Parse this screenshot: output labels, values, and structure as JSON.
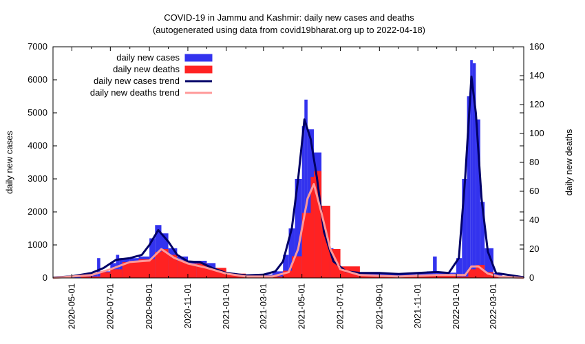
{
  "chart_data": {
    "type": "bar",
    "title": "COVID-19 in Jammu and Kashmir: daily new cases and deaths",
    "subtitle": "(autogenerated using data from covid19bharat.org up to 2022-04-18)",
    "xlabel": "",
    "ylabel": "daily new cases",
    "ylabel_right": "daily new deaths",
    "xlim": [
      "2020-04-01",
      "2022-04-18"
    ],
    "ylim": [
      0,
      7000
    ],
    "ylim_right": [
      0,
      160
    ],
    "yticks": [
      "0",
      "1000",
      "2000",
      "3000",
      "4000",
      "5000",
      "6000",
      "7000"
    ],
    "yticks_right": [
      "0",
      "20",
      "40",
      "60",
      "80",
      "100",
      "120",
      "140",
      "160"
    ],
    "xticks": [
      "2020-05-01",
      "2020-07-01",
      "2020-09-01",
      "2020-11-01",
      "2021-01-01",
      "2021-03-01",
      "2021-05-01",
      "2021-07-01",
      "2021-09-01",
      "2021-11-01",
      "2022-01-01",
      "2022-03-01"
    ],
    "grid": false,
    "legend_position": "top-left",
    "colors": {
      "cases": "#3333ee",
      "deaths": "#ff2222",
      "cases_trend": "#000066",
      "deaths_trend": "#ff9999"
    },
    "series": [
      {
        "name": "daily new cases",
        "kind": "bar",
        "axis": "left",
        "points": [
          [
            "2020-04-01",
            5
          ],
          [
            "2020-04-15",
            25
          ],
          [
            "2020-05-01",
            40
          ],
          [
            "2020-05-15",
            80
          ],
          [
            "2020-06-01",
            130
          ],
          [
            "2020-06-10",
            600
          ],
          [
            "2020-06-15",
            200
          ],
          [
            "2020-07-01",
            450
          ],
          [
            "2020-07-10",
            700
          ],
          [
            "2020-07-15",
            600
          ],
          [
            "2020-08-01",
            600
          ],
          [
            "2020-08-15",
            650
          ],
          [
            "2020-09-01",
            1200
          ],
          [
            "2020-09-10",
            1600
          ],
          [
            "2020-09-20",
            1350
          ],
          [
            "2020-10-01",
            900
          ],
          [
            "2020-10-15",
            650
          ],
          [
            "2020-11-01",
            520
          ],
          [
            "2020-11-15",
            520
          ],
          [
            "2020-12-01",
            450
          ],
          [
            "2020-12-15",
            250
          ],
          [
            "2021-01-01",
            150
          ],
          [
            "2021-01-15",
            120
          ],
          [
            "2021-02-01",
            80
          ],
          [
            "2021-02-15",
            70
          ],
          [
            "2021-03-01",
            100
          ],
          [
            "2021-03-15",
            200
          ],
          [
            "2021-04-01",
            700
          ],
          [
            "2021-04-10",
            1500
          ],
          [
            "2021-04-20",
            3000
          ],
          [
            "2021-05-01",
            4600
          ],
          [
            "2021-05-05",
            5400
          ],
          [
            "2021-05-10",
            4500
          ],
          [
            "2021-05-20",
            3800
          ],
          [
            "2021-06-01",
            1800
          ],
          [
            "2021-06-10",
            900
          ],
          [
            "2021-06-20",
            450
          ],
          [
            "2021-07-01",
            250
          ],
          [
            "2021-07-15",
            150
          ],
          [
            "2021-08-01",
            150
          ],
          [
            "2021-09-01",
            150
          ],
          [
            "2021-10-01",
            110
          ],
          [
            "2021-11-01",
            150
          ],
          [
            "2021-11-15",
            200
          ],
          [
            "2021-11-25",
            650
          ],
          [
            "2021-12-01",
            180
          ],
          [
            "2021-12-15",
            160
          ],
          [
            "2022-01-01",
            600
          ],
          [
            "2022-01-10",
            3000
          ],
          [
            "2022-01-18",
            5500
          ],
          [
            "2022-01-23",
            6600
          ],
          [
            "2022-01-27",
            6500
          ],
          [
            "2022-02-01",
            4800
          ],
          [
            "2022-02-08",
            2300
          ],
          [
            "2022-02-15",
            900
          ],
          [
            "2022-03-01",
            150
          ],
          [
            "2022-03-15",
            60
          ],
          [
            "2022-04-18",
            20
          ]
        ]
      },
      {
        "name": "daily new deaths",
        "kind": "bar",
        "axis": "right",
        "points": [
          [
            "2020-04-01",
            0
          ],
          [
            "2020-05-15",
            1
          ],
          [
            "2020-06-15",
            4
          ],
          [
            "2020-07-01",
            6
          ],
          [
            "2020-07-20",
            11
          ],
          [
            "2020-08-15",
            13
          ],
          [
            "2020-09-10",
            18
          ],
          [
            "2020-09-20",
            20
          ],
          [
            "2020-10-01",
            16
          ],
          [
            "2020-10-15",
            12
          ],
          [
            "2020-11-01",
            10
          ],
          [
            "2020-11-15",
            10
          ],
          [
            "2020-12-01",
            7
          ],
          [
            "2021-01-01",
            3
          ],
          [
            "2021-02-01",
            1
          ],
          [
            "2021-03-01",
            1
          ],
          [
            "2021-04-01",
            5
          ],
          [
            "2021-04-15",
            15
          ],
          [
            "2021-05-01",
            45
          ],
          [
            "2021-05-15",
            70
          ],
          [
            "2021-05-20",
            74
          ],
          [
            "2021-06-01",
            50
          ],
          [
            "2021-06-15",
            20
          ],
          [
            "2021-07-01",
            8
          ],
          [
            "2021-08-01",
            2
          ],
          [
            "2021-09-01",
            1
          ],
          [
            "2021-10-01",
            1
          ],
          [
            "2021-11-01",
            2
          ],
          [
            "2021-12-01",
            2
          ],
          [
            "2022-01-01",
            1
          ],
          [
            "2022-01-20",
            6
          ],
          [
            "2022-02-01",
            9
          ],
          [
            "2022-02-15",
            4
          ],
          [
            "2022-03-01",
            1
          ],
          [
            "2022-04-18",
            0
          ]
        ]
      },
      {
        "name": "daily new cases trend",
        "kind": "line",
        "axis": "left",
        "points": [
          [
            "2020-04-01",
            10
          ],
          [
            "2020-05-01",
            50
          ],
          [
            "2020-06-01",
            150
          ],
          [
            "2020-06-20",
            300
          ],
          [
            "2020-07-10",
            550
          ],
          [
            "2020-08-01",
            600
          ],
          [
            "2020-08-20",
            700
          ],
          [
            "2020-09-01",
            1000
          ],
          [
            "2020-09-15",
            1450
          ],
          [
            "2020-10-01",
            1100
          ],
          [
            "2020-10-15",
            700
          ],
          [
            "2020-11-01",
            500
          ],
          [
            "2020-11-20",
            480
          ],
          [
            "2020-12-10",
            300
          ],
          [
            "2021-01-01",
            150
          ],
          [
            "2021-02-01",
            80
          ],
          [
            "2021-03-01",
            100
          ],
          [
            "2021-03-20",
            200
          ],
          [
            "2021-04-01",
            500
          ],
          [
            "2021-04-15",
            1500
          ],
          [
            "2021-04-25",
            3000
          ],
          [
            "2021-05-05",
            4800
          ],
          [
            "2021-05-15",
            4200
          ],
          [
            "2021-05-25",
            3000
          ],
          [
            "2021-06-05",
            1400
          ],
          [
            "2021-06-20",
            500
          ],
          [
            "2021-07-10",
            200
          ],
          [
            "2021-08-01",
            150
          ],
          [
            "2021-09-01",
            150
          ],
          [
            "2021-10-01",
            120
          ],
          [
            "2021-11-01",
            150
          ],
          [
            "2021-12-01",
            180
          ],
          [
            "2021-12-20",
            150
          ],
          [
            "2022-01-05",
            600
          ],
          [
            "2022-01-15",
            3000
          ],
          [
            "2022-01-25",
            6100
          ],
          [
            "2022-02-01",
            5000
          ],
          [
            "2022-02-10",
            2400
          ],
          [
            "2022-02-20",
            800
          ],
          [
            "2022-03-05",
            150
          ],
          [
            "2022-04-18",
            20
          ]
        ]
      },
      {
        "name": "daily new deaths trend",
        "kind": "line",
        "axis": "right",
        "points": [
          [
            "2020-04-01",
            0
          ],
          [
            "2020-06-01",
            2
          ],
          [
            "2020-07-01",
            6
          ],
          [
            "2020-08-01",
            11
          ],
          [
            "2020-09-01",
            12
          ],
          [
            "2020-09-20",
            20
          ],
          [
            "2020-10-10",
            14
          ],
          [
            "2020-11-01",
            10
          ],
          [
            "2020-12-01",
            7
          ],
          [
            "2021-01-01",
            3
          ],
          [
            "2021-02-01",
            1
          ],
          [
            "2021-03-15",
            1
          ],
          [
            "2021-04-10",
            4
          ],
          [
            "2021-04-25",
            20
          ],
          [
            "2021-05-10",
            55
          ],
          [
            "2021-05-20",
            65
          ],
          [
            "2021-06-01",
            45
          ],
          [
            "2021-06-15",
            20
          ],
          [
            "2021-07-01",
            6
          ],
          [
            "2021-08-01",
            2
          ],
          [
            "2021-10-01",
            1
          ],
          [
            "2021-12-01",
            2
          ],
          [
            "2022-01-15",
            2
          ],
          [
            "2022-01-25",
            8
          ],
          [
            "2022-02-05",
            8
          ],
          [
            "2022-02-20",
            3
          ],
          [
            "2022-03-10",
            1
          ],
          [
            "2022-04-18",
            0
          ]
        ]
      }
    ]
  }
}
